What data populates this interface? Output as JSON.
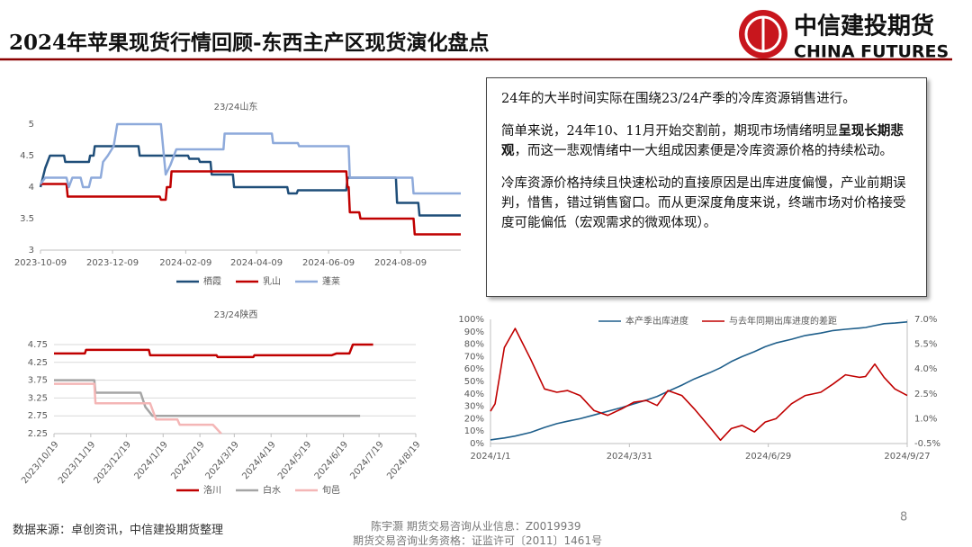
{
  "header": {
    "title": "2024年苹果现货行情回顾-东西主产区现货演化盘点",
    "logo_cn": "中信建投期货",
    "logo_en": "CHINA FUTURES"
  },
  "textbox": {
    "paragraphs": [
      [
        {
          "text": "24年的大半时间实际在围绕23/24产季的冷库资源销售进行。",
          "bold": false
        }
      ],
      [
        {
          "text": "简单来说，24年10、11月开始交割前，期现市场情绪明显",
          "bold": false
        },
        {
          "text": "呈现长期悲观",
          "bold": true
        },
        {
          "text": "，而这一悲观情绪中一大组成因素便是冷库资源价格的持续松动。",
          "bold": false
        }
      ],
      [
        {
          "text": "冷库资源价格持续且快速松动的直接原因是出库进度偏慢，产业前期误判，惜售，错过销售窗口。而从更深度角度来说，终端市场对价格接受度可能偏低（宏观需求的微观体现）。",
          "bold": false
        }
      ]
    ]
  },
  "footer": {
    "source": "数据来源：卓创资讯，中信建投期货整理",
    "author": "陈宇灏 期货交易咨询从业信息：Z0019939",
    "license": "期货交易咨询业务资格：证监许可〔2011〕1461号",
    "page": 8
  },
  "chart_data": [
    {
      "type": "line",
      "title": "23/24山东",
      "grid": false,
      "legend": "bottom",
      "xlim": [
        "2023-10-09",
        "2024-09-29"
      ],
      "xticks": [
        "2023-10-09",
        "2023-12-09",
        "2024-02-09",
        "2024-04-09",
        "2024-06-09",
        "2024-08-09"
      ],
      "ylim": [
        3,
        5
      ],
      "yticks": [
        3,
        3.5,
        4,
        4.5,
        5
      ],
      "series": [
        {
          "name": "栖霞",
          "color": "#1f4e79",
          "x": [
            "2023-10-09",
            "2023-10-13",
            "2023-10-17",
            "2023-10-29",
            "2023-10-30",
            "2023-11-19",
            "2023-11-20",
            "2023-11-23",
            "2023-11-24",
            "2023-12-31",
            "2024-01-01",
            "2024-02-11",
            "2024-02-12",
            "2024-02-20",
            "2024-02-21",
            "2024-03-01",
            "2024-03-02",
            "2024-03-20",
            "2024-03-21",
            "2024-05-05",
            "2024-05-06",
            "2024-05-13",
            "2024-05-14",
            "2024-06-24",
            "2024-06-25",
            "2024-08-05",
            "2024-08-06",
            "2024-08-24",
            "2024-08-25",
            "2024-09-29"
          ],
          "values": [
            4.0,
            4.3,
            4.5,
            4.5,
            4.4,
            4.4,
            4.5,
            4.5,
            4.65,
            4.65,
            4.5,
            4.5,
            4.45,
            4.45,
            4.4,
            4.4,
            4.2,
            4.2,
            4.0,
            4.0,
            3.9,
            3.9,
            3.95,
            3.95,
            4.15,
            4.15,
            3.75,
            3.75,
            3.55,
            3.55
          ]
        },
        {
          "name": "乳山",
          "color": "#c00000",
          "x": [
            "2023-10-09",
            "2023-10-31",
            "2023-11-01",
            "2024-01-18",
            "2024-01-19",
            "2024-01-23",
            "2024-01-24",
            "2024-01-27",
            "2024-01-28",
            "2024-06-24",
            "2024-06-25",
            "2024-06-26",
            "2024-06-27",
            "2024-07-05",
            "2024-07-06",
            "2024-08-20",
            "2024-08-21",
            "2024-09-29"
          ],
          "values": [
            4.05,
            4.05,
            3.85,
            3.85,
            3.8,
            3.8,
            4.0,
            4.0,
            4.25,
            4.25,
            4.0,
            4.0,
            3.6,
            3.6,
            3.5,
            3.5,
            3.25,
            3.25
          ]
        },
        {
          "name": "蓬莱",
          "color": "#8eaadb",
          "x": [
            "2023-10-09",
            "2023-10-13",
            "2023-10-31",
            "2023-11-02",
            "2023-11-05",
            "2023-11-12",
            "2023-11-14",
            "2023-11-19",
            "2023-11-21",
            "2023-11-29",
            "2023-12-01",
            "2023-12-05",
            "2023-12-10",
            "2023-12-13",
            "2024-01-19",
            "2024-01-23",
            "2024-01-27",
            "2024-02-01",
            "2024-03-12",
            "2024-03-13",
            "2024-04-22",
            "2024-04-23",
            "2024-05-14",
            "2024-05-15",
            "2024-06-26",
            "2024-06-27",
            "2024-08-19",
            "2024-08-20",
            "2024-09-29"
          ],
          "values": [
            4.05,
            4.15,
            4.15,
            4.0,
            4.15,
            4.15,
            4.0,
            4.0,
            4.15,
            4.15,
            4.4,
            4.5,
            4.65,
            5.0,
            5.0,
            4.2,
            4.35,
            4.6,
            4.6,
            4.85,
            4.85,
            4.7,
            4.7,
            4.65,
            4.65,
            4.15,
            4.15,
            3.9,
            3.9
          ]
        }
      ]
    },
    {
      "type": "line",
      "title": "23/24陕西",
      "grid": true,
      "legend": "bottom",
      "xlim": [
        "2023/10/19",
        "2024/8/19"
      ],
      "xticks": [
        "2023/10/19",
        "2023/11/19",
        "2023/12/19",
        "2024/1/19",
        "2024/2/19",
        "2024/3/19",
        "2024/4/19",
        "2024/5/19",
        "2024/6/19",
        "2024/7/19",
        "2024/8/19"
      ],
      "ylim": [
        2.25,
        4.75
      ],
      "yticks": [
        2.25,
        2.75,
        3.25,
        3.75,
        4.25,
        4.75
      ],
      "series": [
        {
          "name": "洛川",
          "color": "#c00000",
          "x": [
            "2023/10/19",
            "2023/11/14",
            "2023/11/15",
            "2024/1/7",
            "2024/1/8",
            "2024/3/4",
            "2024/3/5",
            "2024/4/4",
            "2024/4/5",
            "2024/6/9",
            "2024/6/13",
            "2024/6/24",
            "2024/6/27",
            "2024/7/14"
          ],
          "values": [
            4.5,
            4.5,
            4.6,
            4.6,
            4.45,
            4.45,
            4.4,
            4.4,
            4.45,
            4.45,
            4.5,
            4.5,
            4.75,
            4.75
          ]
        },
        {
          "name": "白水",
          "color": "#a5a5a5",
          "x": [
            "2023/10/19",
            "2023/11/22",
            "2023/11/23",
            "2023/12/31",
            "2024/1/4",
            "2024/1/10",
            "2024/7/3"
          ],
          "values": [
            3.75,
            3.75,
            3.4,
            3.4,
            3.0,
            2.75,
            2.75
          ]
        },
        {
          "name": "旬邑",
          "color": "#f4b6b6",
          "x": [
            "2023/10/19",
            "2023/11/22",
            "2023/11/23",
            "2024/1/8",
            "2024/1/13",
            "2024/1/31",
            "2024/2/2",
            "2024/3/1",
            "2024/3/8"
          ],
          "values": [
            3.65,
            3.65,
            3.1,
            3.1,
            2.65,
            2.65,
            2.5,
            2.5,
            2.25
          ]
        }
      ]
    },
    {
      "type": "line",
      "grid": false,
      "legend": "top",
      "xlim": [
        "2024/1/1",
        "2024/9/27"
      ],
      "xticks": [
        "2024/1/1",
        "2024/3/31",
        "2024/6/29",
        "2024/9/27"
      ],
      "ylim": [
        0,
        100
      ],
      "yticks": [
        {
          "value": 0,
          "label": "0%"
        },
        {
          "value": 10,
          "label": "10%"
        },
        {
          "value": 20,
          "label": "20%"
        },
        {
          "value": 30,
          "label": "30%"
        },
        {
          "value": 40,
          "label": "40%"
        },
        {
          "value": 50,
          "label": "50%"
        },
        {
          "value": 60,
          "label": "60%"
        },
        {
          "value": 70,
          "label": "70%"
        },
        {
          "value": 80,
          "label": "80%"
        },
        {
          "value": 90,
          "label": "90%"
        },
        {
          "value": 100,
          "label": "100%"
        }
      ],
      "y2lim": [
        -0.5,
        7.0
      ],
      "y2ticks": [
        {
          "value": -0.5,
          "label": "-0.5%"
        },
        {
          "value": 1.0,
          "label": "1.0%"
        },
        {
          "value": 2.5,
          "label": "2.5%"
        },
        {
          "value": 4.0,
          "label": "4.0%"
        },
        {
          "value": 5.5,
          "label": "5.5%"
        },
        {
          "value": 7.0,
          "label": "7.0%"
        }
      ],
      "x": [
        "2024/1/1",
        "2024/1/4",
        "2024/1/10",
        "2024/1/17",
        "2024/1/27",
        "2024/2/5",
        "2024/2/13",
        "2024/2/20",
        "2024/2/28",
        "2024/3/8",
        "2024/3/17",
        "2024/3/26",
        "2024/4/3",
        "2024/4/11",
        "2024/4/18",
        "2024/4/25",
        "2024/5/4",
        "2024/5/12",
        "2024/5/22",
        "2024/5/29",
        "2024/6/5",
        "2024/6/12",
        "2024/6/20",
        "2024/6/27",
        "2024/7/4",
        "2024/7/14",
        "2024/7/23",
        "2024/8/2",
        "2024/8/10",
        "2024/8/18",
        "2024/8/27",
        "2024/8/31",
        "2024/9/6",
        "2024/9/12",
        "2024/9/19",
        "2024/9/27"
      ],
      "series": [
        {
          "name": "本产季出库进度",
          "color": "#1f5f8b",
          "values": [
            3,
            3.5,
            4.5,
            6,
            9,
            13,
            16,
            18,
            20,
            23,
            26,
            29,
            32,
            35,
            38,
            42,
            47,
            52,
            57,
            61,
            66,
            70,
            74,
            78,
            81,
            84,
            87,
            89,
            91,
            92,
            93,
            93.5,
            95,
            96.5,
            97,
            98
          ]
        },
        {
          "name": "与去年同期出库进度的差距",
          "color": "#c00000",
          "axis": "y2",
          "values": [
            1.45,
            1.9,
            5.3,
            6.45,
            4.6,
            2.8,
            2.6,
            2.7,
            2.4,
            1.5,
            1.2,
            1.6,
            2.0,
            2.1,
            1.8,
            2.7,
            2.4,
            1.6,
            0.5,
            -0.3,
            0.4,
            0.6,
            0.2,
            0.8,
            1.0,
            1.9,
            2.4,
            2.6,
            3.1,
            3.65,
            3.5,
            3.55,
            4.3,
            3.5,
            2.8,
            2.4
          ]
        }
      ]
    }
  ]
}
